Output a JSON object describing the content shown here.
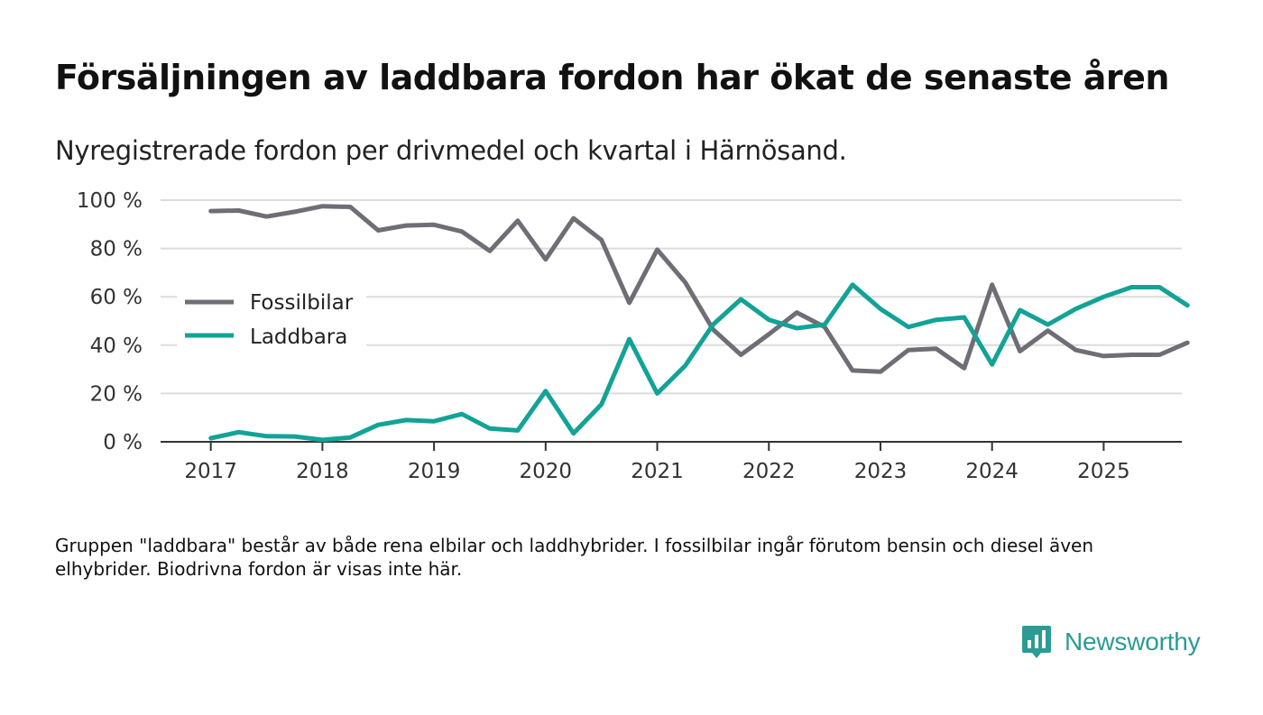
{
  "title": "Försäljningen av laddbara fordon har ökat de senaste åren",
  "subtitle": "Nyregistrerade fordon per drivmedel och kvartal i Härnösand.",
  "note": "Gruppen \"laddbara\" består av både rena elbilar och laddhybrider. I fossilbilar ingår förutom bensin och diesel även elhybrider. Biodrivna fordon är visas inte här.",
  "logo_text": "Newsworthy",
  "colors": {
    "fossil": "#6f6d75",
    "laddbara": "#12a396",
    "grid": "#dcdcdc",
    "axis": "#333333"
  },
  "chart_data": {
    "type": "line",
    "x": [
      2017.0,
      2017.25,
      2017.5,
      2017.75,
      2018.0,
      2018.25,
      2018.5,
      2018.75,
      2019.0,
      2019.25,
      2019.5,
      2019.75,
      2020.0,
      2020.25,
      2020.5,
      2020.75,
      2021.0,
      2021.25,
      2021.5,
      2021.75,
      2022.0,
      2022.25,
      2022.5,
      2022.75,
      2023.0,
      2023.25,
      2023.5,
      2023.75,
      2024.0,
      2024.25,
      2024.5,
      2024.75,
      2025.0,
      2025.25,
      2025.5,
      2025.75
    ],
    "series": [
      {
        "name": "Fossilbilar",
        "color": "#6f6d75",
        "values": [
          95.5,
          95.7,
          93.2,
          95.2,
          97.5,
          97.2,
          87.5,
          89.5,
          89.8,
          87.0,
          79.0,
          91.5,
          75.5,
          92.5,
          83.5,
          57.5,
          79.5,
          66.0,
          46.5,
          36.0,
          44.5,
          53.5,
          47.5,
          29.5,
          29.0,
          38.0,
          38.5,
          30.5,
          65.0,
          37.5,
          46.0,
          38.0,
          35.5,
          36.0,
          36.0,
          41.0
        ]
      },
      {
        "name": "Laddbara",
        "color": "#12a396",
        "values": [
          1.5,
          4.0,
          2.3,
          2.2,
          0.8,
          1.8,
          7.0,
          9.0,
          8.5,
          11.5,
          5.5,
          4.7,
          21.0,
          3.5,
          15.5,
          42.5,
          20.0,
          31.5,
          48.5,
          59.0,
          50.5,
          47.0,
          48.5,
          65.0,
          55.0,
          47.5,
          50.5,
          51.5,
          32.0,
          54.5,
          48.5,
          55.0,
          60.0,
          64.0,
          64.0,
          56.5
        ]
      }
    ],
    "xticks": [
      2017,
      2018,
      2019,
      2020,
      2021,
      2022,
      2023,
      2024,
      2025
    ],
    "yticks": [
      0,
      20,
      40,
      60,
      80,
      100
    ],
    "ytick_labels": [
      "0 %",
      "20 %",
      "40 %",
      "60 %",
      "80 %",
      "100 %"
    ],
    "xlim": [
      2016.55,
      2025.7
    ],
    "ylim": [
      0,
      100
    ],
    "legend": [
      {
        "label": "Fossilbilar"
      },
      {
        "label": "Laddbara"
      }
    ],
    "legend_position": "center-left",
    "grid": "horizontal"
  }
}
